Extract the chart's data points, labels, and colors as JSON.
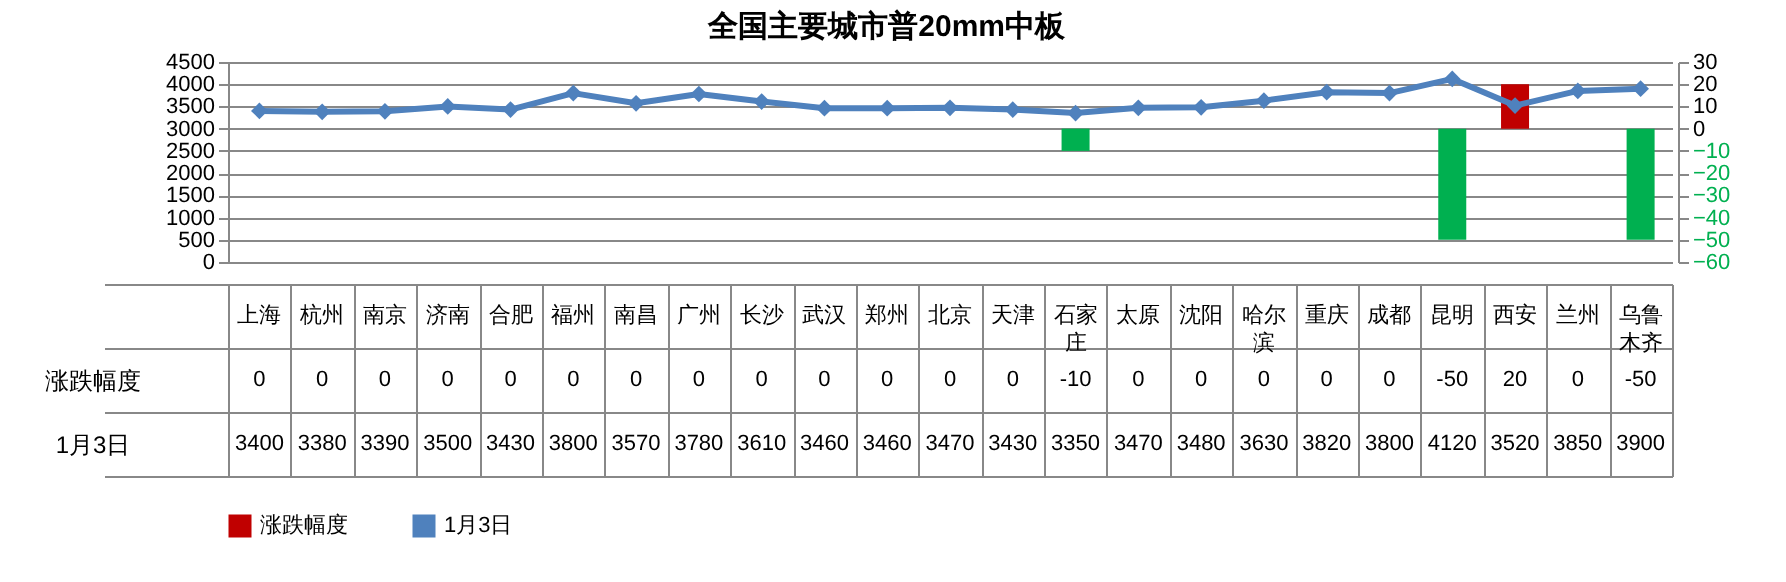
{
  "chart_data": {
    "type": "line",
    "title": "全国主要城市普20mm中板",
    "categories": [
      "上海",
      "杭州",
      "南京",
      "济南",
      "合肥",
      "福州",
      "南昌",
      "广州",
      "长沙",
      "武汉",
      "郑州",
      "北京",
      "天津",
      "石家庄",
      "太原",
      "沈阳",
      "哈尔滨",
      "重庆",
      "成都",
      "昆明",
      "西安",
      "兰州",
      "乌鲁木齐"
    ],
    "series": [
      {
        "name": "涨跌幅度",
        "type": "bar",
        "axis": "y2",
        "color": "#c00000",
        "colors": [
          "#c00000",
          "#c00000",
          "#c00000",
          "#c00000",
          "#c00000",
          "#c00000",
          "#c00000",
          "#c00000",
          "#c00000",
          "#c00000",
          "#c00000",
          "#c00000",
          "#c00000",
          "#00b050",
          "#c00000",
          "#c00000",
          "#c00000",
          "#c00000",
          "#c00000",
          "#00b050",
          "#c00000",
          "#c00000",
          "#00b050"
        ],
        "values": [
          0,
          0,
          0,
          0,
          0,
          0,
          0,
          0,
          0,
          0,
          0,
          0,
          0,
          -10,
          0,
          0,
          0,
          0,
          0,
          -50,
          20,
          0,
          -50
        ]
      },
      {
        "name": "1月3日",
        "type": "line",
        "color": "#4f81bd",
        "values": [
          3400,
          3380,
          3390,
          3500,
          3430,
          3800,
          3570,
          3780,
          3610,
          3460,
          3460,
          3470,
          3430,
          3350,
          3470,
          3480,
          3630,
          3820,
          3800,
          4120,
          3520,
          3850,
          3900
        ]
      }
    ],
    "ylim": [
      0,
      4500
    ],
    "yticks": [
      0,
      500,
      1000,
      1500,
      2000,
      2500,
      3000,
      3500,
      4000,
      4500
    ],
    "y2lim": [
      -60,
      30
    ],
    "y2ticks": [
      -60,
      -50,
      -40,
      -30,
      -20,
      -10,
      0,
      10,
      20,
      30
    ],
    "grid": "y",
    "legend": "bottom",
    "marker": "diamond",
    "line_style": "solid",
    "data_labels": true
  }
}
